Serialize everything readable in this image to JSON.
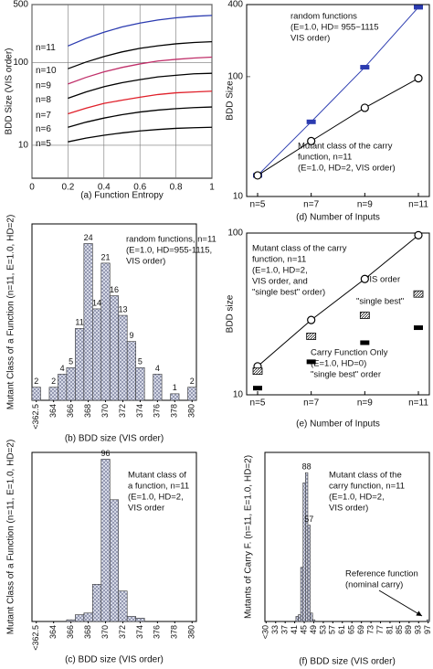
{
  "chart_data": [
    {
      "type": "line",
      "ylabel": "BDD Size (VIS order)",
      "caption": "(a) Function Entropy",
      "x": [
        0.2,
        0.3,
        0.4,
        0.5,
        0.6,
        0.7,
        0.8,
        0.9,
        1.0
      ],
      "xlim": [
        0,
        1
      ],
      "xticks": [
        0,
        0.2,
        0.4,
        0.6,
        0.8,
        1
      ],
      "ylim": [
        4,
        500
      ],
      "yticks": [
        10,
        100,
        500
      ],
      "log_y": true,
      "grid": true,
      "series": [
        {
          "name": "n=11",
          "color": "#2b3bb0",
          "values": [
            158,
            195,
            232,
            268,
            299,
            326,
            346,
            361,
            370
          ]
        },
        {
          "name": "n=10",
          "color": "#000000",
          "values": [
            84,
            101,
            118,
            134,
            148,
            159,
            168,
            174,
            178
          ]
        },
        {
          "name": "n=9",
          "color": "#c0306a",
          "values": [
            55,
            66,
            77,
            87,
            96,
            104,
            109,
            113,
            116
          ]
        },
        {
          "name": "n=8",
          "color": "#000000",
          "values": [
            37,
            44,
            51,
            57,
            62,
            67,
            70,
            73,
            74
          ]
        },
        {
          "name": "n=7",
          "color": "#e0202a",
          "values": [
            24,
            28,
            32,
            35,
            38,
            41,
            43,
            44,
            45
          ]
        },
        {
          "name": "n=6",
          "color": "#000000",
          "values": [
            16.5,
            19,
            21.3,
            23.4,
            25.2,
            26.6,
            27.7,
            28.5,
            29
          ]
        },
        {
          "name": "n=5",
          "color": "#000000",
          "values": [
            11,
            12.2,
            13.2,
            14.1,
            14.9,
            15.5,
            16,
            16.3,
            16.5
          ]
        }
      ]
    },
    {
      "type": "bar",
      "ylabel": "Mutant Class of a Function (n=11, E=1.0, HD=2)",
      "caption": "(b) BDD size (VIS order)",
      "categories": [
        "<362.5",
        null,
        "364",
        null,
        "366",
        null,
        "368",
        null,
        "370",
        null,
        "372",
        null,
        "374",
        null,
        "376",
        null,
        "378",
        null,
        "380"
      ],
      "values": [
        2,
        0,
        2,
        4,
        5,
        11,
        24,
        14,
        21,
        16,
        13,
        9,
        5,
        0,
        4,
        0,
        1,
        0,
        2
      ],
      "ylim": [
        0,
        27
      ],
      "annotations": [
        "random functions, n=11",
        "(E=1.0, HD=955-1115,",
        "VIS order)"
      ]
    },
    {
      "type": "bar",
      "ylabel": "Mutant Class of a Function (n=11, E=1.0, HD=2)",
      "caption": "(c) BDD size (VIS order)",
      "categories": [
        "<362.5",
        null,
        "364",
        null,
        "366",
        null,
        "368",
        null,
        "370",
        null,
        "372",
        null,
        "374",
        null,
        "376",
        null,
        "378",
        null,
        "380"
      ],
      "values": [
        0,
        0,
        0,
        0,
        1,
        4,
        5,
        22,
        96,
        72,
        18,
        3,
        2,
        0,
        0,
        0,
        0,
        0,
        0
      ],
      "value_labels": [
        null,
        null,
        null,
        null,
        null,
        null,
        null,
        null,
        "96",
        null,
        null,
        null,
        null,
        null,
        null,
        null,
        null,
        null,
        null
      ],
      "ylim": [
        0,
        100
      ],
      "annotations": [
        "Mutant class of",
        "a function, n=11",
        "(E=1.0, HD=2,",
        "VIS order"
      ]
    },
    {
      "type": "line",
      "ylabel": "BDD Size",
      "caption": "(d) Number of Inputs",
      "categories": [
        "n=5",
        "n=7",
        "n=9",
        "n=11"
      ],
      "ylim": [
        10,
        400
      ],
      "yticks": [
        10,
        100,
        400
      ],
      "log_y": true,
      "grid": false,
      "series": [
        {
          "color": "#2b3bb0",
          "marker": "bar",
          "line": true,
          "values": [
            15,
            42,
            120,
            380
          ]
        },
        {
          "color": "#000000",
          "marker": "circle",
          "line": true,
          "values": [
            15,
            29,
            55,
            97
          ]
        }
      ],
      "annotations": [
        "random functions",
        "(E=1.0, HD= 955~1115",
        "VIS order)",
        "Mutant class  of the carry",
        "function, n=11",
        "(E=1.0, HD=2, VIS order)"
      ]
    },
    {
      "type": "line",
      "ylabel": "BDD size",
      "caption": "(e) Number of Inputs",
      "categories": [
        "n=5",
        "n=7",
        "n=9",
        "n=11"
      ],
      "ylim": [
        10,
        100
      ],
      "yticks": [
        10,
        100
      ],
      "log_y": true,
      "grid": false,
      "series": [
        {
          "color": "#000000",
          "marker": "circle",
          "line": true,
          "values": [
            15,
            29,
            52,
            97
          ]
        },
        {
          "color": "#000000",
          "marker": "square",
          "line": false,
          "values": [
            14,
            23,
            31,
            42
          ]
        },
        {
          "color": "#000000",
          "marker": "bar",
          "line": false,
          "values": [
            11,
            16,
            21,
            26
          ]
        }
      ],
      "annotations": [
        "Mutant class of the carry",
        "function, n=11",
        "(E=1.0, HD=2,",
        "VIS order, and",
        "\"single best\" order)",
        "VIS order",
        "\"single best\"",
        "Carry Function Only",
        "(E=1.0, HD=0)",
        "\"single best\" order"
      ]
    },
    {
      "type": "bar",
      "ylabel": "Mutants of Carry F. (n=11, E=1.0, HD=2)",
      "caption": "(f) BDD size (VIS order)",
      "categories": [
        "<30",
        null,
        null,
        null,
        "33",
        null,
        null,
        null,
        "37",
        null,
        null,
        null,
        "41",
        null,
        null,
        null,
        "45",
        null,
        null,
        null,
        "49",
        null,
        null,
        null,
        "53",
        null,
        null,
        null,
        "57",
        null,
        null,
        null,
        "61",
        null,
        null,
        null,
        "65",
        null,
        null,
        null,
        "69",
        null,
        null,
        null,
        "73",
        null,
        null,
        null,
        "77",
        null,
        null,
        null,
        "81",
        null,
        null,
        null,
        "85",
        null,
        null,
        null,
        "89",
        null,
        null,
        null,
        "93",
        null,
        null,
        null,
        "97"
      ],
      "values": [
        0,
        0,
        0,
        0,
        0,
        0,
        0,
        0,
        0,
        0,
        0,
        0,
        0,
        3,
        4,
        32,
        82,
        88,
        57,
        5,
        1,
        0,
        0,
        0,
        0,
        0,
        0,
        0,
        0,
        0,
        0,
        0,
        0,
        0,
        0,
        0,
        0,
        0,
        0,
        0,
        0,
        0,
        0,
        0,
        0,
        0,
        0,
        0,
        0,
        0,
        0,
        0,
        0,
        0,
        0,
        0,
        0,
        0,
        0,
        0,
        0,
        0,
        0,
        0,
        0,
        0,
        0,
        0,
        1
      ],
      "value_labels": [
        null,
        null,
        null,
        null,
        null,
        null,
        null,
        null,
        null,
        null,
        null,
        null,
        null,
        null,
        null,
        null,
        null,
        "88",
        "57",
        null,
        null,
        null,
        null,
        null,
        null,
        null,
        null,
        null,
        null,
        null,
        null,
        null,
        null,
        null,
        null,
        null,
        null,
        null,
        null,
        null,
        null,
        null,
        null,
        null,
        null,
        null,
        null,
        null,
        null,
        null,
        null,
        null,
        null,
        null,
        null,
        null,
        null,
        null,
        null,
        null,
        null,
        null,
        null,
        null,
        null,
        null,
        null,
        null,
        null
      ],
      "ylim": [
        0,
        100
      ],
      "annotations": [
        "Mutant class  of the",
        "carry function, n=11",
        "(E=1.0, HD=2,",
        "VIS order)",
        "Reference function",
        "(nominal carry)"
      ]
    }
  ]
}
